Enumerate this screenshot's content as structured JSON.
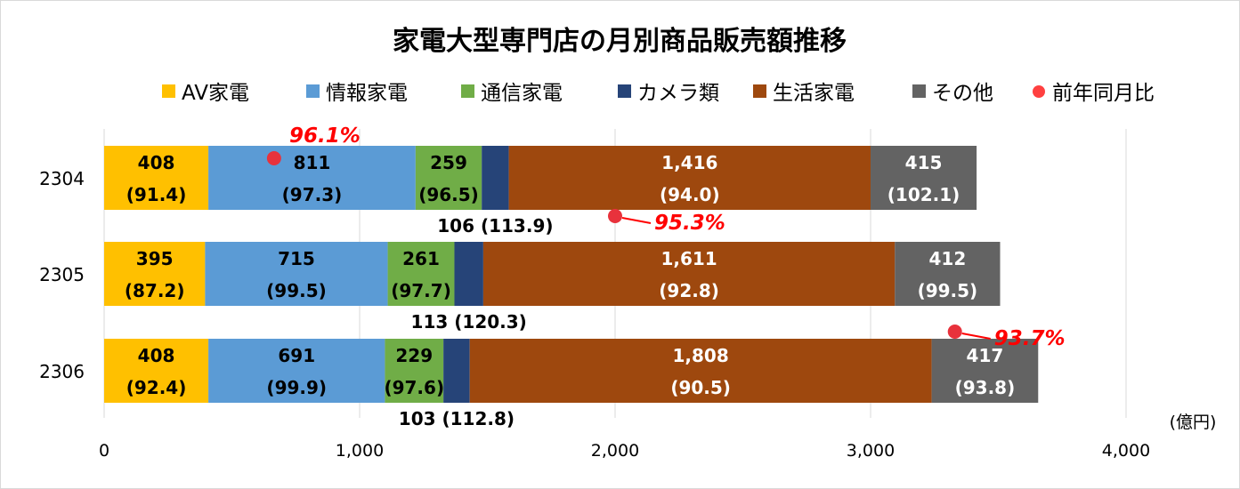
{
  "chart_data": {
    "type": "bar",
    "orientation": "horizontal-stacked",
    "title": "家電大型専門店の月別商品販売額推移",
    "unit_label": "(億円)",
    "xlim": [
      0,
      4000
    ],
    "xticks": [
      "0",
      "1,000",
      "2,000",
      "3,000",
      "4,000"
    ],
    "xtick_values": [
      0,
      1000,
      2000,
      3000,
      4000
    ],
    "categories": [
      "2304",
      "2305",
      "2306"
    ],
    "series": [
      {
        "name": "AV家電",
        "color": "#FFC000",
        "text": "#000",
        "values": [
          408,
          395,
          408
        ],
        "ratios": [
          "91.4",
          "87.2",
          "92.4"
        ]
      },
      {
        "name": "情報家電",
        "color": "#5B9BD5",
        "text": "#000",
        "values": [
          811,
          715,
          691
        ],
        "ratios": [
          "97.3",
          "99.5",
          "99.9"
        ]
      },
      {
        "name": "通信家電",
        "color": "#70AD47",
        "text": "#000",
        "values": [
          259,
          261,
          229
        ],
        "ratios": [
          "96.5",
          "97.7",
          "97.6"
        ]
      },
      {
        "name": "カメラ類",
        "color": "#264478",
        "text": "#000",
        "values": [
          106,
          113,
          103
        ],
        "ratios": [
          "113.9",
          "120.3",
          "112.8"
        ],
        "label_below": true
      },
      {
        "name": "生活家電",
        "color": "#9E480E",
        "text": "#fff",
        "values": [
          1416,
          1611,
          1808
        ],
        "ratios": [
          "94.0",
          "92.8",
          "90.5"
        ]
      },
      {
        "name": "その他",
        "color": "#636363",
        "text": "#fff",
        "values": [
          415,
          412,
          417
        ],
        "ratios": [
          "102.1",
          "99.5",
          "93.8"
        ]
      }
    ],
    "yoy": {
      "name": "前年同月比",
      "color": "#FF0000",
      "values": [
        "96.1%",
        "95.3%",
        "93.7%"
      ],
      "marker_x": [
        665,
        2000,
        3330
      ]
    }
  }
}
